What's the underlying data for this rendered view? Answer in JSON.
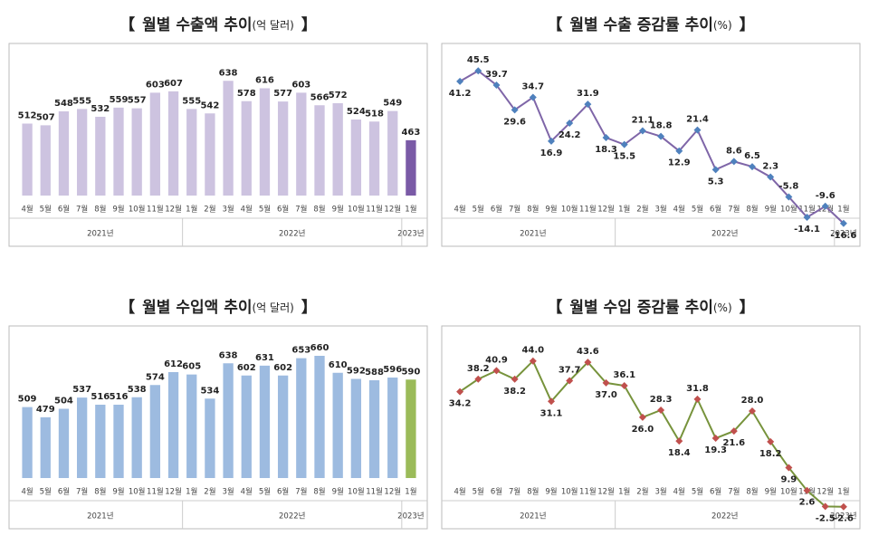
{
  "chart_data": [
    {
      "type": "bar",
      "title_prefix": "【",
      "title": "월별 수출액 추이",
      "title_unit": "(억 달러)",
      "title_suffix": "】",
      "categories": [
        "4월",
        "5월",
        "6월",
        "7월",
        "8월",
        "9월",
        "10월",
        "11월",
        "12월",
        "1월",
        "2월",
        "3월",
        "4월",
        "5월",
        "6월",
        "7월",
        "8월",
        "9월",
        "10월",
        "11월",
        "12월",
        "1월"
      ],
      "x_groups": [
        {
          "label": "2021년",
          "size": 9
        },
        {
          "label": "2022년",
          "size": 12
        },
        {
          "label": "2023년",
          "size": 1
        }
      ],
      "values": [
        512,
        507,
        548,
        555,
        532,
        559,
        557,
        603,
        607,
        555,
        542,
        638,
        578,
        616,
        577,
        603,
        566,
        572,
        524,
        518,
        549,
        463
      ],
      "colors": [
        "#cdc3e0",
        "#cdc3e0",
        "#cdc3e0",
        "#cdc3e0",
        "#cdc3e0",
        "#cdc3e0",
        "#cdc3e0",
        "#cdc3e0",
        "#cdc3e0",
        "#cdc3e0",
        "#cdc3e0",
        "#cdc3e0",
        "#cdc3e0",
        "#cdc3e0",
        "#cdc3e0",
        "#cdc3e0",
        "#cdc3e0",
        "#cdc3e0",
        "#cdc3e0",
        "#cdc3e0",
        "#cdc3e0",
        "#7a5aa6"
      ],
      "ylim": [
        300,
        700
      ]
    },
    {
      "type": "line",
      "title_prefix": "【",
      "title": "월별 수출 증감률 추이",
      "title_unit": "(%)",
      "title_suffix": "】",
      "categories": [
        "4월",
        "5월",
        "6월",
        "7월",
        "8월",
        "9월",
        "10월",
        "11월",
        "12월",
        "1월",
        "2월",
        "3월",
        "4월",
        "5월",
        "6월",
        "7월",
        "8월",
        "9월",
        "10월",
        "11월",
        "12월",
        "1월"
      ],
      "x_groups": [
        {
          "label": "2021년",
          "size": 9
        },
        {
          "label": "2022년",
          "size": 12
        },
        {
          "label": "2023년",
          "size": 1
        }
      ],
      "values": [
        41.2,
        45.5,
        39.7,
        29.6,
        34.7,
        16.9,
        24.2,
        31.9,
        18.3,
        15.5,
        21.1,
        18.8,
        12.9,
        21.4,
        5.3,
        8.6,
        6.5,
        2.3,
        -5.8,
        -14.1,
        -9.6,
        -16.6
      ],
      "color": "#7f66a8",
      "marker_color": "#4f81bd",
      "ylim": [
        -20,
        50
      ]
    },
    {
      "type": "bar",
      "title_prefix": "【",
      "title": "월별 수입액 추이",
      "title_unit": "(억 달러)",
      "title_suffix": "】",
      "categories": [
        "4월",
        "5월",
        "6월",
        "7월",
        "8월",
        "9월",
        "10월",
        "11월",
        "12월",
        "1월",
        "2월",
        "3월",
        "4월",
        "5월",
        "6월",
        "7월",
        "8월",
        "9월",
        "10월",
        "11월",
        "12월",
        "1월"
      ],
      "x_groups": [
        {
          "label": "2021년",
          "size": 9
        },
        {
          "label": "2022년",
          "size": 12
        },
        {
          "label": "2023년",
          "size": 1
        }
      ],
      "values": [
        509,
        479,
        504,
        537,
        516,
        516,
        538,
        574,
        612,
        605,
        534,
        638,
        602,
        631,
        602,
        653,
        660,
        610,
        592,
        588,
        596,
        590
      ],
      "colors": [
        "#9dbbe0",
        "#9dbbe0",
        "#9dbbe0",
        "#9dbbe0",
        "#9dbbe0",
        "#9dbbe0",
        "#9dbbe0",
        "#9dbbe0",
        "#9dbbe0",
        "#9dbbe0",
        "#9dbbe0",
        "#9dbbe0",
        "#9dbbe0",
        "#9dbbe0",
        "#9dbbe0",
        "#9dbbe0",
        "#9dbbe0",
        "#9dbbe0",
        "#9dbbe0",
        "#9dbbe0",
        "#9dbbe0",
        "#9bbb59"
      ],
      "ylim": [
        300,
        700
      ]
    },
    {
      "type": "line",
      "title_prefix": "【",
      "title": "월별 수입 증감률 추이",
      "title_unit": "(%)",
      "title_suffix": "】",
      "categories": [
        "4월",
        "5월",
        "6월",
        "7월",
        "8월",
        "9월",
        "10월",
        "11월",
        "12월",
        "1월",
        "2월",
        "3월",
        "4월",
        "5월",
        "6월",
        "7월",
        "8월",
        "9월",
        "10월",
        "11월",
        "12월",
        "1월"
      ],
      "x_groups": [
        {
          "label": "2021년",
          "size": 9
        },
        {
          "label": "2022년",
          "size": 12
        },
        {
          "label": "2023년",
          "size": 1
        }
      ],
      "values": [
        34.2,
        38.2,
        40.9,
        38.2,
        44.0,
        31.1,
        37.7,
        43.6,
        37.0,
        36.1,
        26.0,
        28.3,
        18.4,
        31.8,
        19.3,
        21.6,
        28.0,
        18.2,
        9.9,
        2.6,
        -2.5,
        -2.6
      ],
      "value_labels": [
        "34.2",
        "38.2",
        "40.9",
        "38.2",
        "44.0",
        "31.1",
        "37.7",
        "43.6",
        "37.0",
        "36.1",
        "26.0",
        "28.3",
        "18.4",
        "31.8",
        "19.3",
        "21.6",
        "28.0",
        "18.2",
        "9.9",
        "2.6",
        "-2.5",
        "-2.6"
      ],
      "color": "#77933c",
      "marker_color": "#c0504d",
      "ylim": [
        -5,
        50
      ]
    }
  ]
}
